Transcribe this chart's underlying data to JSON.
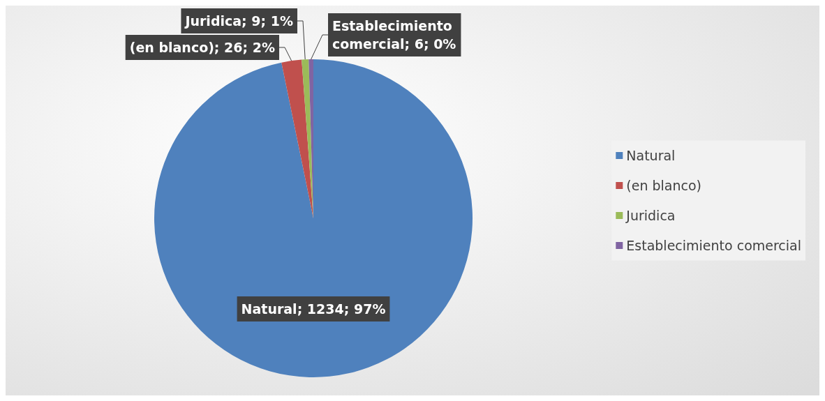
{
  "chart_data": {
    "type": "pie",
    "categories": [
      "Natural",
      "(en blanco)",
      "Juridica",
      "Establecimiento comercial"
    ],
    "values": [
      1234,
      26,
      9,
      6
    ],
    "colors": [
      "#4f81bd",
      "#c0504d",
      "#9bbb59",
      "#8064a2"
    ],
    "value_labels": [
      "Natural; 1234; 97%",
      "(en blanco); 26; 2%",
      "Juridica; 9; 1%",
      "Establecimiento comercial; 6; 0%"
    ],
    "legend": "right"
  }
}
